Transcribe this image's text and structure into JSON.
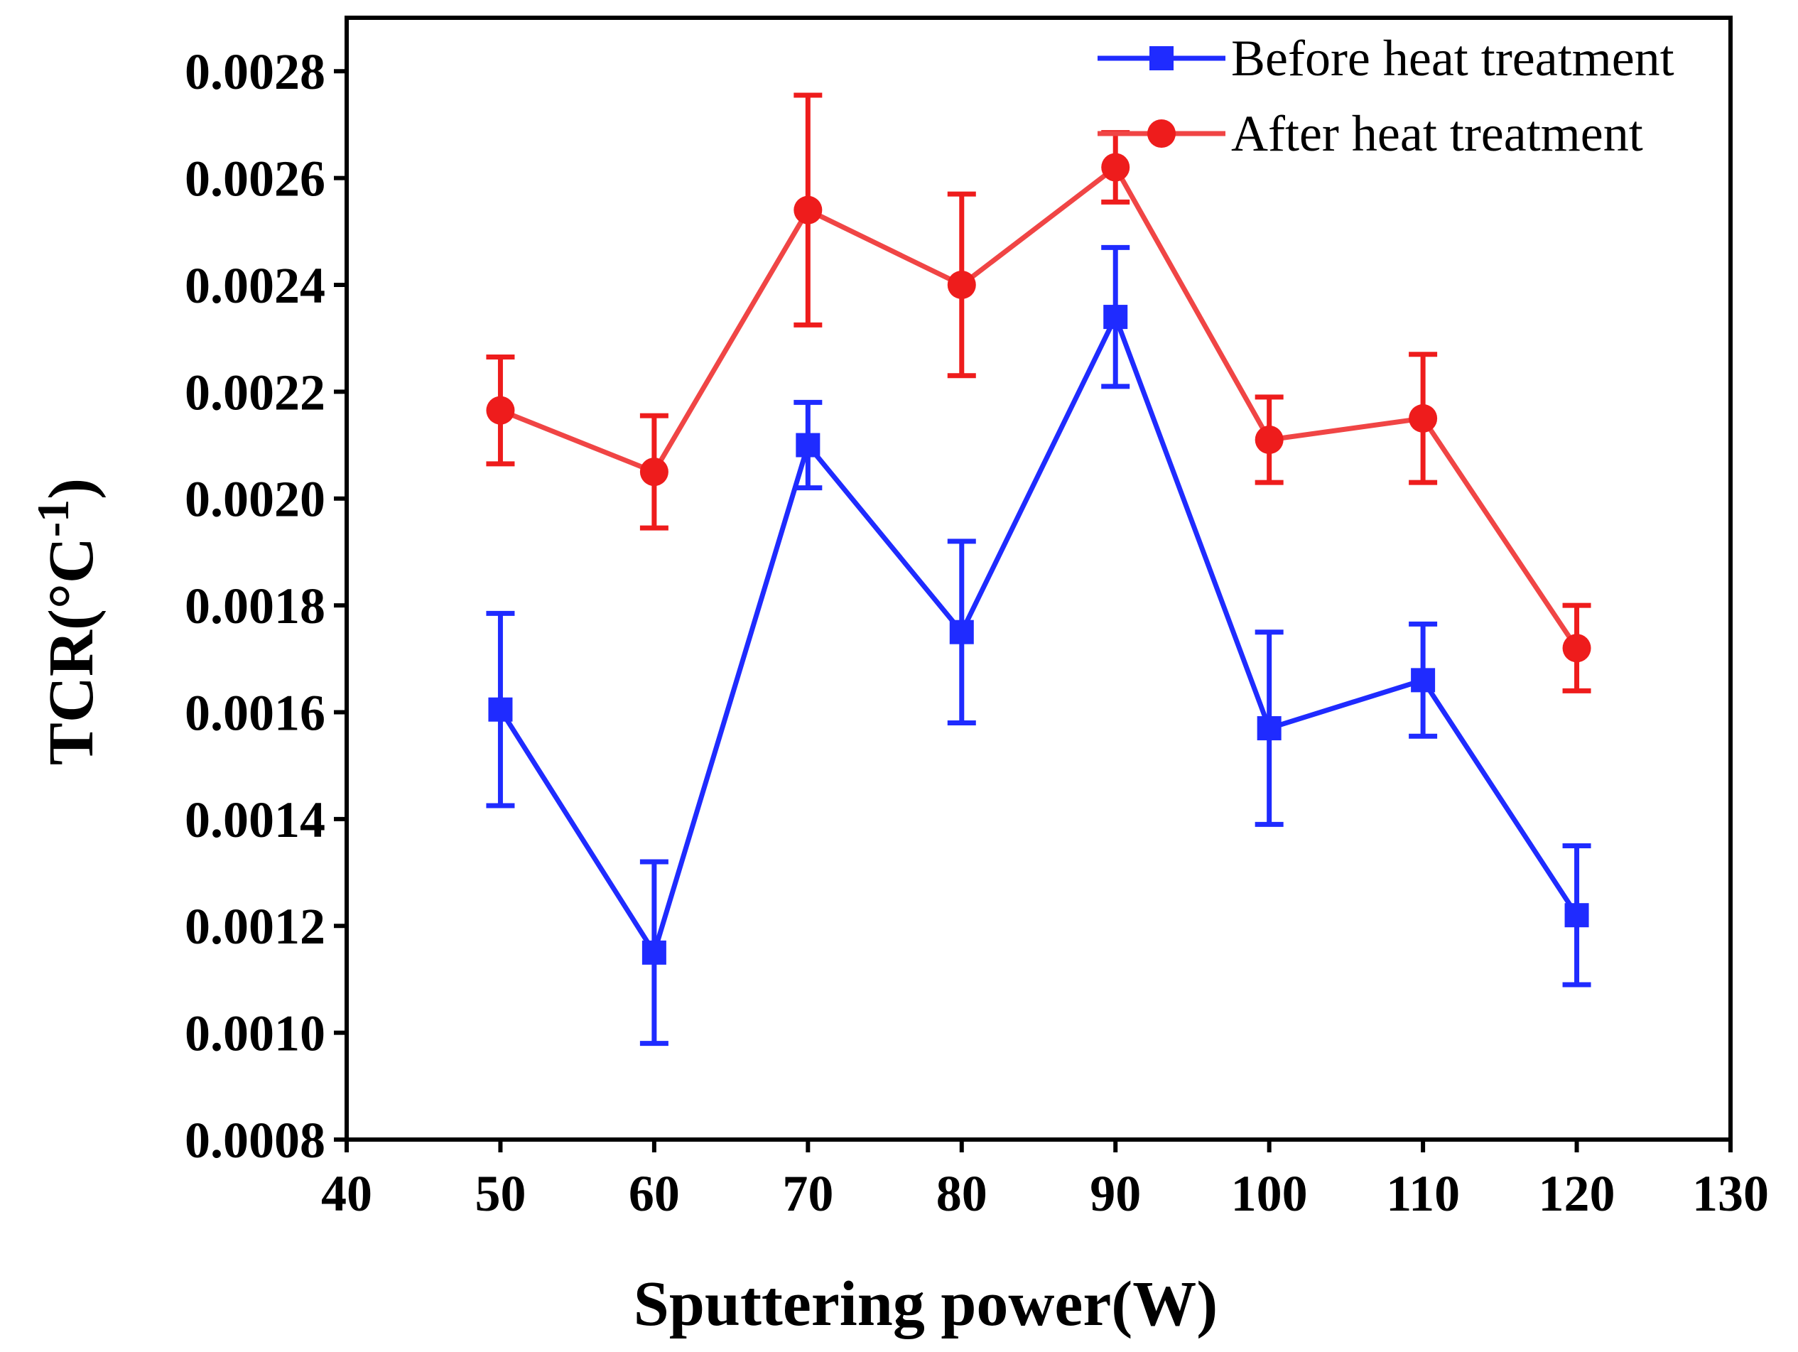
{
  "chart_data": {
    "type": "line",
    "title": "",
    "xlabel": "Sputtering power(W)",
    "ylabel": "TCR(°C",
    "ylabel_superscript": "-1",
    "ylabel_close": ")",
    "xlim": [
      40,
      130
    ],
    "ylim": [
      0.0008,
      0.0029
    ],
    "x_ticks": [
      40,
      50,
      60,
      70,
      80,
      90,
      100,
      110,
      120,
      130
    ],
    "x_tick_labels": [
      "40",
      "50",
      "60",
      "70",
      "80",
      "90",
      "100",
      "110",
      "120",
      "130"
    ],
    "y_ticks": [
      0.0008,
      0.001,
      0.0012,
      0.0014,
      0.0016,
      0.0018,
      0.002,
      0.0022,
      0.0024,
      0.0026,
      0.0028
    ],
    "y_tick_labels": [
      "0.0008",
      "0.0010",
      "0.0012",
      "0.0014",
      "0.0016",
      "0.0018",
      "0.0020",
      "0.0022",
      "0.0024",
      "0.0026",
      "0.0028"
    ],
    "grid": false,
    "legend_position": "top-right",
    "x": [
      50,
      60,
      70,
      80,
      90,
      100,
      110,
      120
    ],
    "series": [
      {
        "name": "Before heat treatment",
        "marker": "square",
        "color": "#1f2bff",
        "values": [
          0.001605,
          0.00115,
          0.0021,
          0.00175,
          0.00234,
          0.00157,
          0.00166,
          0.00122
        ],
        "err_upper": [
          0.001785,
          0.00132,
          0.00218,
          0.00192,
          0.00247,
          0.00175,
          0.001765,
          0.00135
        ],
        "err_lower": [
          0.001425,
          0.00098,
          0.00202,
          0.00158,
          0.00221,
          0.00139,
          0.001555,
          0.00109
        ]
      },
      {
        "name": "After heat treatment",
        "marker": "circle",
        "color": "#ee1c1c",
        "line_color": "#f04545",
        "values": [
          0.002165,
          0.00205,
          0.00254,
          0.0024,
          0.00262,
          0.00211,
          0.00215,
          0.00172
        ],
        "err_upper": [
          0.002265,
          0.002155,
          0.002755,
          0.00257,
          0.002685,
          0.00219,
          0.00227,
          0.0018
        ],
        "err_lower": [
          0.002065,
          0.001945,
          0.002325,
          0.00223,
          0.002555,
          0.00203,
          0.00203,
          0.00164
        ]
      }
    ]
  }
}
